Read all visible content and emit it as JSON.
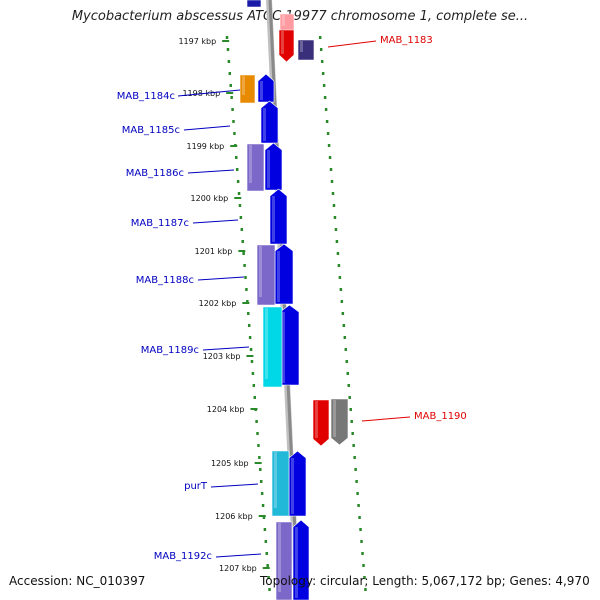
{
  "title": "Mycobacterium abscessus ATCC 19977 chromosome 1, complete se...",
  "footer": {
    "accession_label": "Accession:",
    "accession": "NC_010397",
    "topology_label": "Topology:",
    "topology": "circular;",
    "length_label": "Length:",
    "length": "5,067,172 bp;",
    "genes_label": "Genes:",
    "genes": "4,970"
  },
  "map_data": {
    "position_ticks": [
      "1197 kbp",
      "1198 kbp",
      "1199 kbp",
      "1200 kbp",
      "1201 kbp",
      "1202 kbp",
      "1203 kbp",
      "1204 kbp",
      "1205 kbp",
      "1206 kbp",
      "1207 kbp"
    ],
    "gene_labels": [
      {
        "id": "MAB_1183",
        "strand": "forward",
        "color": "#e00000"
      },
      {
        "id": "MAB_1184c",
        "strand": "reverse",
        "color": "#0000c0"
      },
      {
        "id": "MAB_1185c",
        "strand": "reverse",
        "color": "#0000c0"
      },
      {
        "id": "MAB_1186c",
        "strand": "reverse",
        "color": "#0000c0"
      },
      {
        "id": "MAB_1187c",
        "strand": "reverse",
        "color": "#0000c0"
      },
      {
        "id": "MAB_1188c",
        "strand": "reverse",
        "color": "#0000c0"
      },
      {
        "id": "MAB_1189c",
        "strand": "reverse",
        "color": "#0000c0"
      },
      {
        "id": "MAB_1190",
        "strand": "forward",
        "color": "#e00000"
      },
      {
        "id": "purT",
        "strand": "reverse",
        "color": "#0000c0"
      },
      {
        "id": "MAB_1192c",
        "strand": "reverse",
        "color": "#0000c0"
      }
    ],
    "colors": {
      "backbone": "#8a8a8a",
      "tick": "#2a8a2a",
      "reverse_gene": "#0000e0",
      "forward_gene": "#e00000"
    }
  }
}
